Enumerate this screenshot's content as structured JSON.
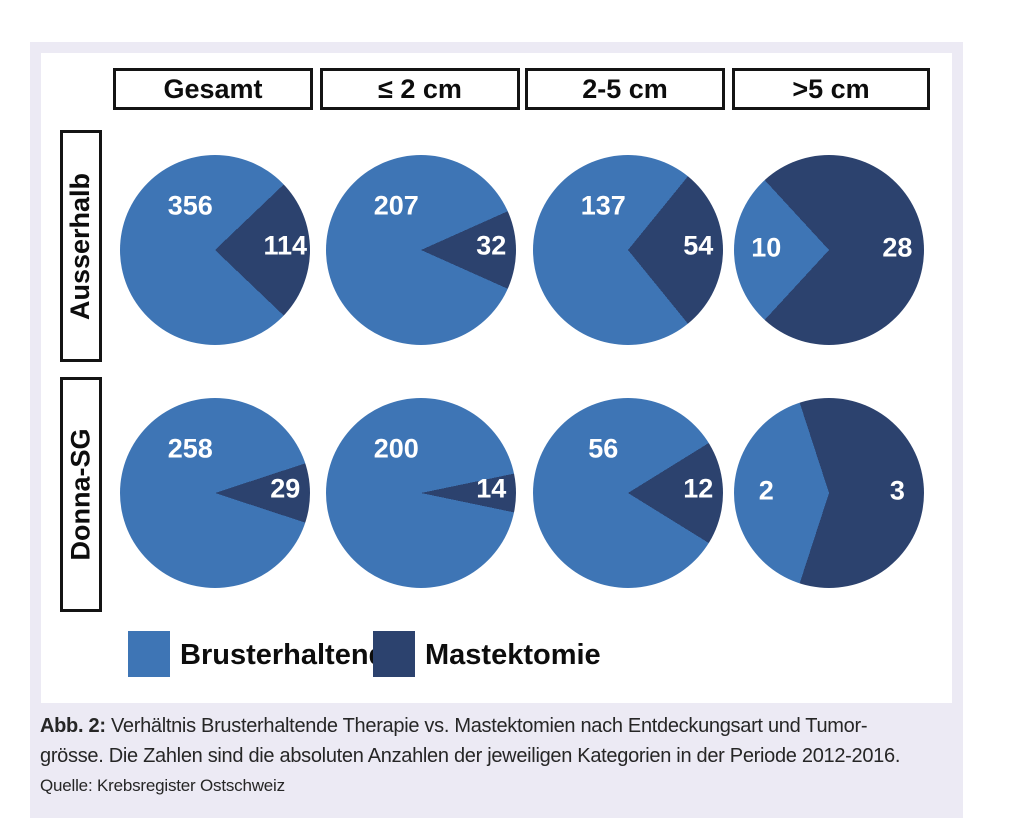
{
  "figure": {
    "column_headers": [
      "Gesamt",
      "≤ 2 cm",
      "2-5 cm",
      ">5 cm"
    ],
    "row_headers": [
      "Ausserhalb",
      "Donna-SG"
    ],
    "colors": {
      "brusterhaltend": "#3E75B5",
      "mastektomie": "#2C426E",
      "panel_background": "#ECEAF4",
      "chart_background": "#FFFFFF"
    },
    "legend": {
      "items": [
        {
          "label": "Brusterhaltend",
          "color": "#3E75B5"
        },
        {
          "label": "Mastektomie",
          "color": "#2C426E"
        }
      ]
    }
  },
  "chart_data": {
    "type": "pie",
    "title": "Verhältnis Brusterhaltende Therapie vs. Mastektomien nach Entdeckungsart und Tumorgrösse",
    "legend_position": "bottom",
    "columns": [
      "Gesamt",
      "≤ 2 cm",
      "2-5 cm",
      ">5 cm"
    ],
    "rows": [
      "Ausserhalb",
      "Donna-SG"
    ],
    "series_names": [
      "Brusterhaltend",
      "Mastektomie"
    ],
    "pies": [
      {
        "row": "Ausserhalb",
        "column": "Gesamt",
        "brusterhaltend": 356,
        "mastektomie": 114
      },
      {
        "row": "Ausserhalb",
        "column": "≤ 2 cm",
        "brusterhaltend": 207,
        "mastektomie": 32
      },
      {
        "row": "Ausserhalb",
        "column": "2-5 cm",
        "brusterhaltend": 137,
        "mastektomie": 54
      },
      {
        "row": "Ausserhalb",
        "column": ">5 cm",
        "brusterhaltend": 10,
        "mastektomie": 28
      },
      {
        "row": "Donna-SG",
        "column": "Gesamt",
        "brusterhaltend": 258,
        "mastektomie": 29
      },
      {
        "row": "Donna-SG",
        "column": "≤ 2 cm",
        "brusterhaltend": 200,
        "mastektomie": 14
      },
      {
        "row": "Donna-SG",
        "column": "2-5 cm",
        "brusterhaltend": 56,
        "mastektomie": 12
      },
      {
        "row": "Donna-SG",
        "column": ">5 cm",
        "brusterhaltend": 2,
        "mastektomie": 3
      }
    ]
  },
  "caption": {
    "label": "Abb. 2:",
    "line1_rest": " Verhältnis Brusterhaltende Therapie vs. Mastektomien nach Entdeckungsart und Tumor-",
    "line2": "grösse. Die Zahlen sind die absoluten Anzahlen der jeweiligen Kategorien in der Periode 2012-2016.",
    "source": "Quelle: Krebsregister Ostschweiz"
  }
}
